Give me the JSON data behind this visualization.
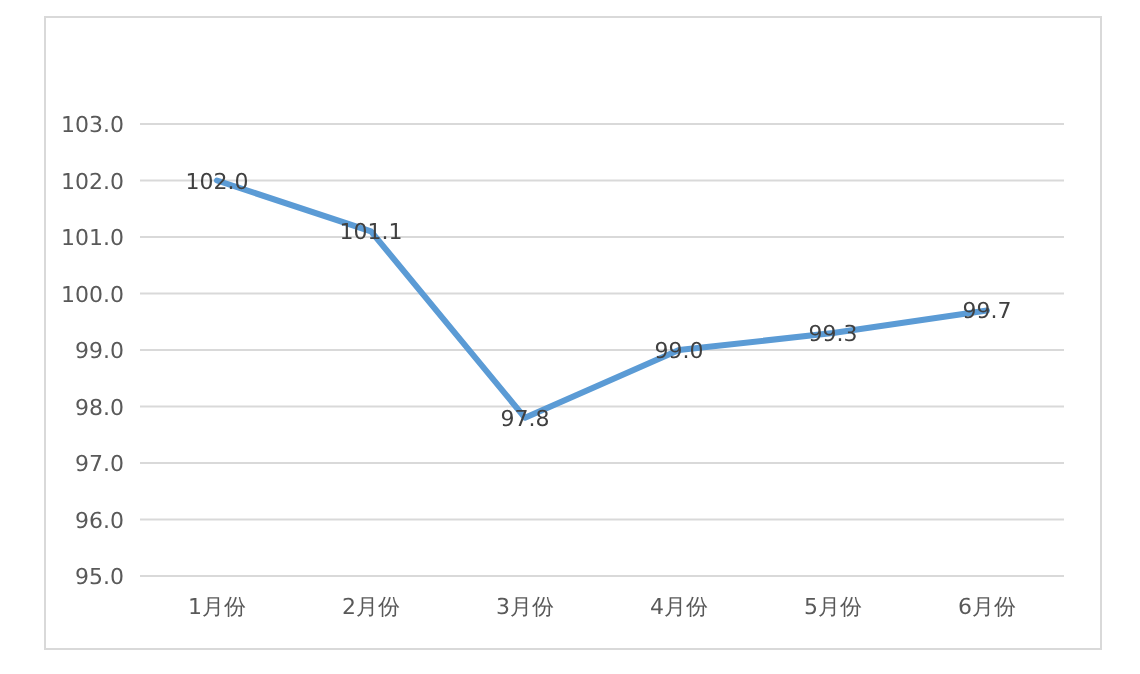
{
  "chart_data": {
    "type": "line",
    "categories": [
      "1月份",
      "2月份",
      "3月份",
      "4月份",
      "5月份",
      "6月份"
    ],
    "series": [
      {
        "color": "#5b9bd5",
        "values": [
          102.0,
          101.1,
          97.8,
          99.0,
          99.3,
          99.7
        ],
        "value_labels": [
          "102.0",
          "101.1",
          "97.8",
          "99.0",
          "99.3",
          "99.7"
        ]
      }
    ],
    "ylim": [
      95,
      103
    ],
    "yticks": [
      {
        "value": 95,
        "label": "95.0"
      },
      {
        "value": 96,
        "label": "96.0"
      },
      {
        "value": 97,
        "label": "97.0"
      },
      {
        "value": 98,
        "label": "98.0"
      },
      {
        "value": 99,
        "label": "99.0"
      },
      {
        "value": 100,
        "label": "100.0"
      },
      {
        "value": 101,
        "label": "101.0"
      },
      {
        "value": 102,
        "label": "102.0"
      },
      {
        "value": 103,
        "label": "103.0"
      }
    ],
    "grid": "y",
    "marker": "none",
    "line_style": "solid"
  }
}
